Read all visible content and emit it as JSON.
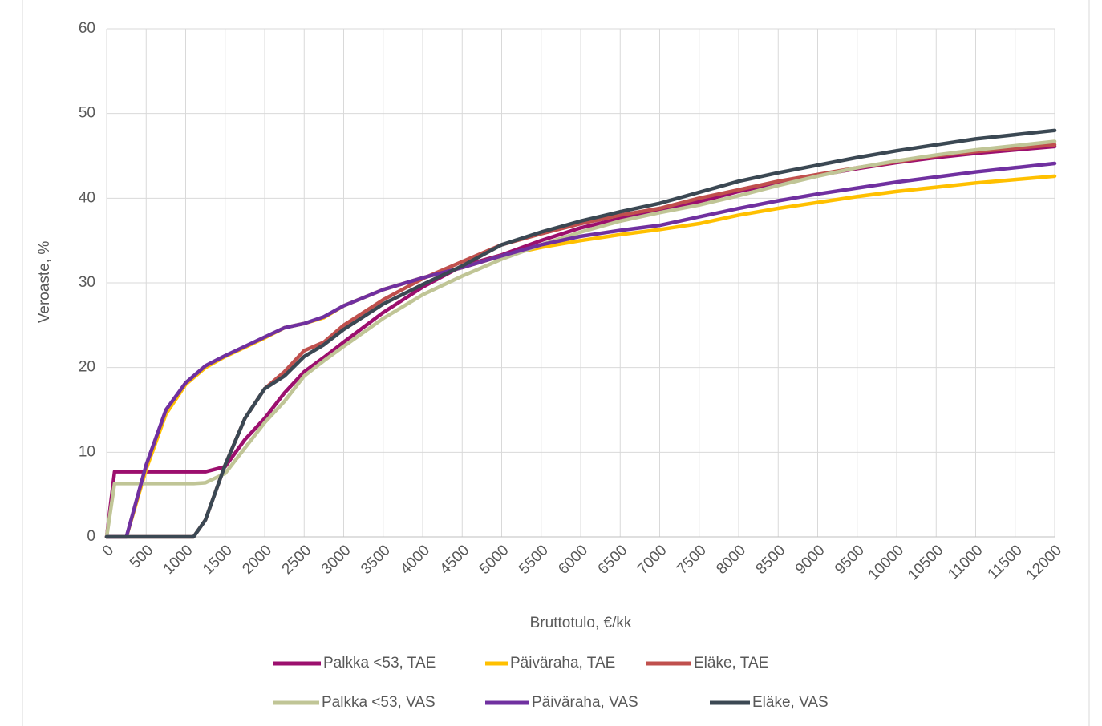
{
  "chart_data": {
    "type": "line",
    "x_label": "Bruttotulo, €/kk",
    "y_label": "Veroaste, %",
    "x": [
      0,
      100,
      250,
      500,
      750,
      1000,
      1100,
      1250,
      1500,
      1750,
      2000,
      2250,
      2500,
      2750,
      3000,
      3500,
      4000,
      4500,
      5000,
      5500,
      6000,
      6500,
      7000,
      7500,
      8000,
      8500,
      9000,
      9500,
      10000,
      10500,
      11000,
      11500,
      12000
    ],
    "series": [
      {
        "name": "Palkka <53, TAE",
        "color": "#9c0f6e",
        "values": [
          0,
          7.7,
          7.7,
          7.7,
          7.7,
          7.7,
          7.7,
          7.7,
          8.3,
          11.5,
          14,
          17,
          19.5,
          21.2,
          23,
          26.5,
          29.5,
          32,
          33.3,
          35,
          36.5,
          37.6,
          38.6,
          39.6,
          40.8,
          41.8,
          42.7,
          43.5,
          44.2,
          44.8,
          45.3,
          45.7,
          46.1
        ]
      },
      {
        "name": "Päiväraha, TAE",
        "color": "#ffc000",
        "values": [
          0,
          0,
          0,
          8,
          14.5,
          18,
          18.8,
          20,
          21.3,
          22.4,
          23.5,
          24.7,
          25.2,
          25.9,
          27.3,
          29.2,
          30.6,
          31.8,
          33.2,
          34.2,
          35,
          35.7,
          36.3,
          37,
          38,
          38.8,
          39.5,
          40.2,
          40.8,
          41.3,
          41.8,
          42.2,
          42.6
        ]
      },
      {
        "name": "Eläke, TAE",
        "color": "#c0504d",
        "values": [
          0,
          0,
          0,
          0,
          0,
          0,
          0,
          2,
          8.5,
          14,
          17.5,
          19.5,
          22,
          23,
          25,
          28,
          30.5,
          32.5,
          34.5,
          35.8,
          37,
          38,
          38.8,
          40,
          41,
          42,
          42.8,
          43.6,
          44.3,
          45,
          45.5,
          45.9,
          46.3
        ]
      },
      {
        "name": "Palkka <53, VAS",
        "color": "#c0c596",
        "values": [
          0,
          6.3,
          6.3,
          6.3,
          6.3,
          6.3,
          6.3,
          6.4,
          7.5,
          10.5,
          13.5,
          16,
          19,
          20.8,
          22.5,
          25.8,
          28.6,
          30.8,
          32.8,
          34.5,
          36,
          37.3,
          38.3,
          39.2,
          40.3,
          41.5,
          42.6,
          43.6,
          44.4,
          45.1,
          45.7,
          46.2,
          46.7
        ]
      },
      {
        "name": "Päiväraha, VAS",
        "color": "#7030a0",
        "values": [
          0,
          0,
          0,
          8.5,
          15,
          18.2,
          19,
          20.2,
          21.4,
          22.5,
          23.6,
          24.7,
          25.2,
          26,
          27.3,
          29.2,
          30.6,
          31.8,
          33.2,
          34.5,
          35.5,
          36.2,
          36.8,
          37.8,
          38.8,
          39.7,
          40.5,
          41.2,
          41.9,
          42.5,
          43.1,
          43.6,
          44.1
        ]
      },
      {
        "name": "Eläke, VAS",
        "color": "#3b4853",
        "values": [
          0,
          0,
          0,
          0,
          0,
          0,
          0,
          2,
          8.5,
          14,
          17.5,
          19,
          21.3,
          22.7,
          24.5,
          27.5,
          29.8,
          32,
          34.5,
          36,
          37.3,
          38.4,
          39.4,
          40.7,
          42,
          43,
          43.9,
          44.8,
          45.6,
          46.3,
          47,
          47.5,
          48
        ]
      }
    ],
    "xlim": [
      0,
      12000
    ],
    "xticks": [
      0,
      500,
      1000,
      1500,
      2000,
      2500,
      3000,
      3500,
      4000,
      4500,
      5000,
      5500,
      6000,
      6500,
      7000,
      7500,
      8000,
      8500,
      9000,
      9500,
      10000,
      10500,
      11000,
      11500,
      12000
    ],
    "ylim": [
      0,
      60
    ],
    "yticks": [
      0,
      10,
      20,
      30,
      40,
      50,
      60
    ],
    "grid": true,
    "legend": "bottom"
  }
}
